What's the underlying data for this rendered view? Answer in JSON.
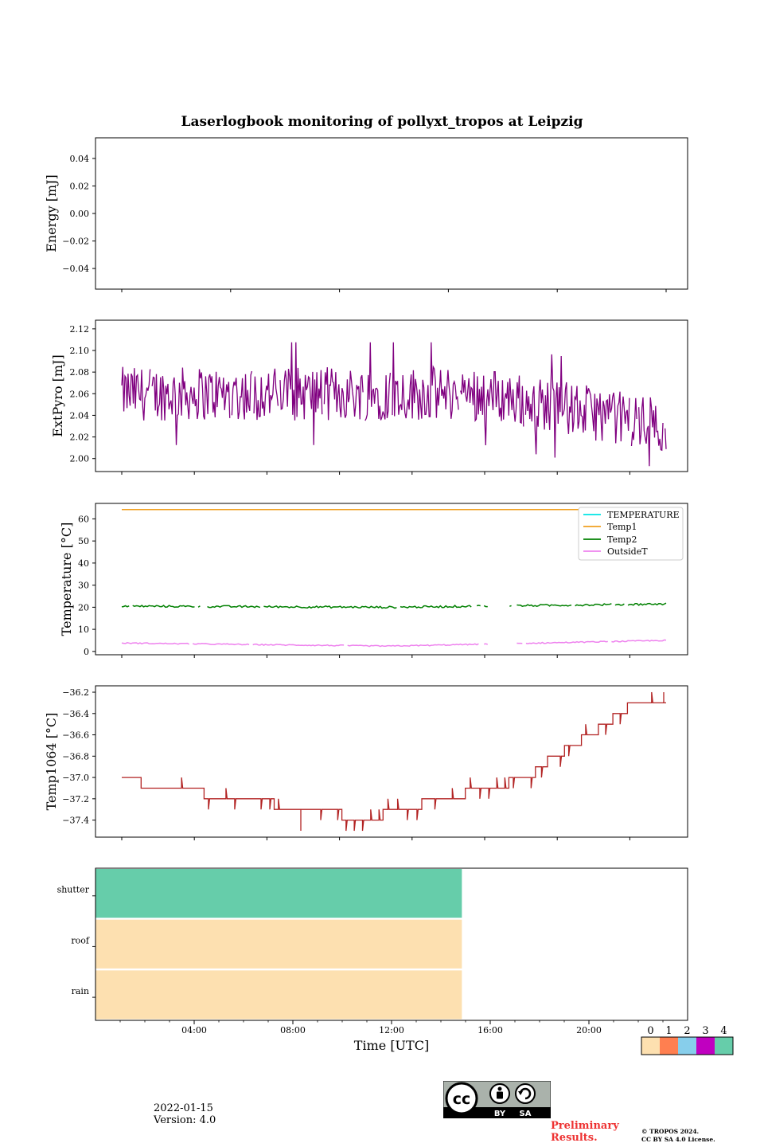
{
  "title": "Laserlogbook monitoring of pollyxt_tropos at Leipzig",
  "footer": {
    "date": "2022-01-15",
    "version": "Version: 4.0",
    "preliminary_line1": "Preliminary",
    "preliminary_line2": "Results.",
    "copyright_line1": "© TROPOS 2024.",
    "copyright_line2": "CC BY SA 4.0 License.",
    "license_by": "BY",
    "license_sa": "SA",
    "license_cc": "cc"
  },
  "colors": {
    "extpyro": "#800080",
    "temperature": "#00e5e5",
    "temp1": "#f0a020",
    "temp2": "#008000",
    "outsideT": "#ee82ee",
    "temp1064": "#b22222"
  },
  "chart_data": [
    {
      "type": "line",
      "panel": "energy",
      "ylabel": "Energy [mJ]",
      "ylim": [
        -0.055,
        0.055
      ],
      "yticks": [
        0.04,
        0.02,
        0.0,
        -0.02,
        -0.04
      ],
      "ytick_labels": [
        "0.04",
        "0.02",
        "0.00",
        "−0.02",
        "−0.04"
      ],
      "x_ticks_hours": [
        0,
        4,
        8,
        12,
        16,
        20
      ],
      "series": []
    },
    {
      "type": "line",
      "panel": "extpyro",
      "ylabel": "ExtPyro [mJ]",
      "ylim": [
        1.988,
        2.128
      ],
      "yticks": [
        2.12,
        2.1,
        2.08,
        2.06,
        2.04,
        2.02,
        2.0
      ],
      "ytick_labels": [
        "2.12",
        "2.10",
        "2.08",
        "2.06",
        "2.04",
        "2.02",
        "2.00"
      ],
      "x_ticks_hours": [
        0,
        3,
        6,
        9,
        12,
        15,
        18,
        21
      ],
      "series": [
        {
          "name": "ExtPyro",
          "x_range_hours": [
            0,
            22.5
          ],
          "mean_start": 2.06,
          "mean_end": 2.03,
          "noise_amplitude": 0.025,
          "min": 1.993,
          "max": 2.114,
          "num_points": 520
        }
      ]
    },
    {
      "type": "line",
      "panel": "temperature",
      "ylabel": "Temperature [°C]",
      "ylim": [
        -1.5,
        67
      ],
      "yticks": [
        60,
        50,
        40,
        30,
        20,
        10,
        0
      ],
      "ytick_labels": [
        "60",
        "50",
        "40",
        "30",
        "20",
        "10",
        "0"
      ],
      "x_ticks_hours": [
        0,
        3,
        6,
        9,
        12,
        15,
        18,
        21
      ],
      "legend_location": "top-right",
      "series": [
        {
          "name": "TEMPERATURE",
          "values": []
        },
        {
          "name": "Temp1",
          "x_range_hours": [
            0,
            22.5
          ],
          "start": 64.2,
          "end": 64.2
        },
        {
          "name": "Temp2",
          "x_range_hours": [
            0,
            22.5
          ],
          "start": 20.5,
          "mid": 20.0,
          "end": 21.5
        },
        {
          "name": "OutsideT",
          "x_range_hours": [
            0,
            22.5
          ],
          "start": 3.8,
          "mid": 2.4,
          "end": 5.0
        }
      ]
    },
    {
      "type": "line",
      "panel": "temp1064",
      "ylabel": "Temp1064 [°C]",
      "ylim": [
        -37.56,
        -36.14
      ],
      "yticks": [
        -36.2,
        -36.4,
        -36.6,
        -36.8,
        -37.0,
        -37.2,
        -37.4
      ],
      "ytick_labels": [
        "−36.2",
        "−36.4",
        "−36.6",
        "−36.8",
        "−37.0",
        "−37.2",
        "−37.4"
      ],
      "x_ticks_hours": [
        0,
        3,
        6,
        9,
        12,
        15,
        18,
        21
      ],
      "series": [
        {
          "name": "Temp1064",
          "levels": [
            {
              "x": [
                0.0,
                0.8
              ],
              "y": -37.0
            },
            {
              "x": [
                0.8,
                3.4
              ],
              "y": -37.1
            },
            {
              "x": [
                3.4,
                6.3
              ],
              "y": -37.2
            },
            {
              "x": [
                6.3,
                9.1
              ],
              "y": -37.3
            },
            {
              "x": [
                9.1,
                10.8
              ],
              "y": -37.4
            },
            {
              "x": [
                10.8,
                12.4
              ],
              "y": -37.3
            },
            {
              "x": [
                12.4,
                14.2
              ],
              "y": -37.2
            },
            {
              "x": [
                14.2,
                15.0
              ],
              "y": -37.1
            },
            {
              "x": [
                15.0,
                16.0
              ],
              "y": -37.1
            },
            {
              "x": [
                16.0,
                17.1
              ],
              "y": -37.0
            },
            {
              "x": [
                17.1,
                17.6
              ],
              "y": -36.9
            },
            {
              "x": [
                17.6,
                18.3
              ],
              "y": -36.8
            },
            {
              "x": [
                18.3,
                19.0
              ],
              "y": -36.7
            },
            {
              "x": [
                19.0,
                19.7
              ],
              "y": -36.6
            },
            {
              "x": [
                19.7,
                20.3
              ],
              "y": -36.5
            },
            {
              "x": [
                20.3,
                20.9
              ],
              "y": -36.4
            },
            {
              "x": [
                20.9,
                22.5
              ],
              "y": -36.3
            }
          ],
          "min": -37.5,
          "max": -36.2
        }
      ]
    },
    {
      "type": "heatmap",
      "panel": "status",
      "xlabel": "Time [UTC]",
      "x_range_hours": [
        0,
        24
      ],
      "x_tick_labels": [
        "04:00",
        "08:00",
        "12:00",
        "16:00",
        "20:00"
      ],
      "x_ticks_hours": [
        4,
        8,
        12,
        16,
        20
      ],
      "rows": [
        {
          "name": "shutter",
          "value": 4,
          "x_range_hours": [
            0,
            14.85
          ]
        },
        {
          "name": "roof",
          "value": 0,
          "x_range_hours": [
            0,
            14.85
          ]
        },
        {
          "name": "rain",
          "value": 0,
          "x_range_hours": [
            0,
            14.85
          ]
        }
      ],
      "colorbar": {
        "labels": [
          "0",
          "1",
          "2",
          "3",
          "4"
        ],
        "colors": [
          "#fde0b0",
          "#ff7f50",
          "#87ceeb",
          "#c000c0",
          "#66cdaa"
        ]
      }
    }
  ]
}
